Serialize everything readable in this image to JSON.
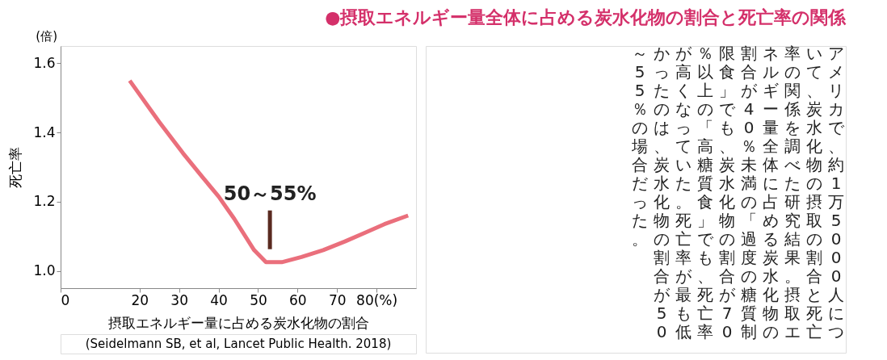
{
  "chart_data": {
    "type": "line",
    "title": "●摂取エネルギー量全体に占める炭水化物の割合と死亡率の関係",
    "xlabel": "摂取エネルギー量に占める炭水化物の割合",
    "ylabel": "死亡率",
    "x": [
      17.5,
      25,
      31,
      36,
      40,
      44,
      49,
      52,
      56,
      61,
      66.5,
      72,
      77,
      82,
      88
    ],
    "series": [
      {
        "color": "#ea6f7c",
        "values": [
          1.55,
          1.43,
          1.34,
          1.27,
          1.215,
          1.15,
          1.06,
          1.025,
          1.025,
          1.04,
          1.06,
          1.085,
          1.11,
          1.135,
          1.16
        ]
      }
    ],
    "xlim": [
      0,
      90
    ],
    "xticks": [
      0,
      20,
      30,
      40,
      50,
      60,
      70,
      {
        "value": 80,
        "label": "80(%)"
      }
    ],
    "ylim": [
      0.95,
      1.65
    ],
    "yticks": [
      {
        "value": 1.0,
        "label": "1.0"
      },
      {
        "value": 1.2,
        "label": "1.2"
      },
      {
        "value": 1.4,
        "label": "1.4"
      },
      {
        "value": 1.6,
        "label": "1.6"
      }
    ],
    "grid": false,
    "marker": "none",
    "line_style": "solid",
    "annotations": [
      "(倍)",
      {
        "text": "50～55%",
        "x": 53,
        "y": 1.03
      },
      "(Seidelmann SB, et al, Lancet Public Health. 2018)",
      "アメリカで、約1万5000人について、炭水化物の摂取の割合と死亡率の関係を調べた研究結果。摂取エネルギー量全体に占める炭水化物の割合が40％未満の「過度の糖質制限食」でも、炭水化物の割合が70％以上の「高糖質食」でも、死亡率が高くなっていた。死亡率が最も低かったのは、炭水化物の割合が50～55％の場合だった。"
    ]
  }
}
